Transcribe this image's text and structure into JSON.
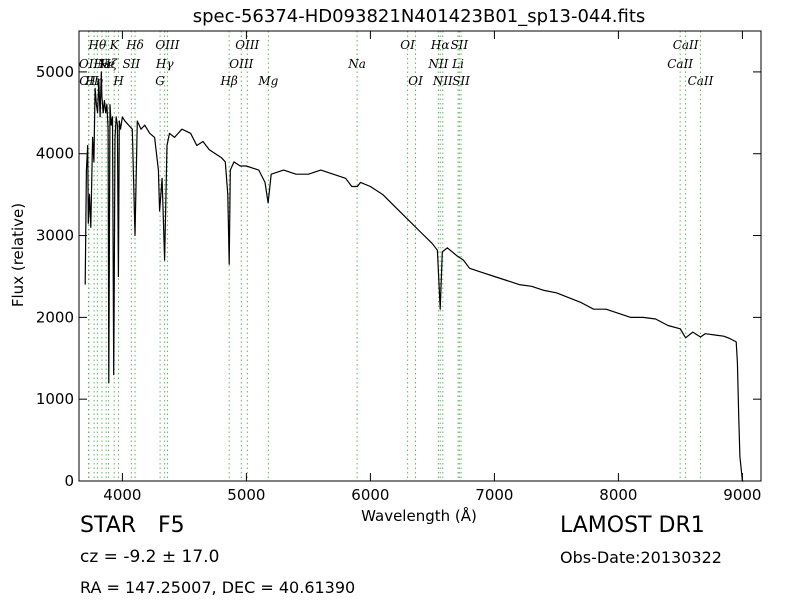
{
  "chart_data": {
    "type": "line",
    "title": "spec-56374-HD093821N401423B01_sp13-044.fits",
    "xlabel": "Wavelength (Å)",
    "ylabel": "Flux (relative)",
    "xlim": [
      3650,
      9150
    ],
    "ylim": [
      0,
      5500
    ],
    "xticks": [
      4000,
      5000,
      6000,
      7000,
      8000,
      9000
    ],
    "yticks": [
      0,
      1000,
      2000,
      3000,
      4000,
      5000
    ],
    "grid": false,
    "line_color": "#000000",
    "marker_color": "#5cb85c",
    "series": [
      {
        "x": [
          3700,
          3710,
          3720,
          3725,
          3735,
          3745,
          3760,
          3770,
          3780,
          3790,
          3800,
          3810,
          3820,
          3830,
          3835,
          3845,
          3855,
          3865,
          3875,
          3885,
          3890,
          3900,
          3910,
          3920,
          3930,
          3934,
          3940,
          3950,
          3960,
          3968,
          3975,
          3985,
          4000,
          4020,
          4050,
          4080,
          4102,
          4120,
          4150,
          4180,
          4220,
          4260,
          4290,
          4300,
          4320,
          4340,
          4360,
          4380,
          4420,
          4480,
          4550,
          4600,
          4650,
          4700,
          4750,
          4800,
          4830,
          4850,
          4861,
          4870,
          4900,
          4950,
          5000,
          5100,
          5150,
          5175,
          5200,
          5300,
          5400,
          5500,
          5600,
          5700,
          5800,
          5850,
          5895,
          5920,
          6000,
          6100,
          6200,
          6300,
          6400,
          6500,
          6540,
          6563,
          6580,
          6620,
          6700,
          6750,
          6800,
          6900,
          7000,
          7100,
          7200,
          7300,
          7400,
          7500,
          7600,
          7700,
          7800,
          7900,
          8000,
          8100,
          8200,
          8300,
          8400,
          8498,
          8542,
          8600,
          8662,
          8700,
          8800,
          8850,
          8900,
          8950,
          8960,
          8970,
          8980,
          9000,
          9010
        ],
        "y": [
          2400,
          3800,
          4100,
          3150,
          3500,
          3100,
          4200,
          3900,
          4800,
          4600,
          4500,
          4900,
          4450,
          5000,
          4700,
          4500,
          4650,
          4500,
          4600,
          4300,
          1200,
          4600,
          4350,
          4450,
          1300,
          2300,
          4200,
          4450,
          4350,
          2500,
          4400,
          4300,
          4450,
          4400,
          4350,
          4300,
          3000,
          4400,
          4300,
          4350,
          4250,
          4200,
          3800,
          3300,
          3700,
          2700,
          4100,
          4250,
          4200,
          4300,
          4250,
          4100,
          4150,
          4050,
          4000,
          3950,
          3900,
          3500,
          2650,
          3800,
          3900,
          3850,
          3850,
          3800,
          3650,
          3400,
          3750,
          3800,
          3750,
          3750,
          3800,
          3750,
          3700,
          3600,
          3600,
          3650,
          3600,
          3500,
          3350,
          3200,
          3050,
          2900,
          2820,
          2100,
          2800,
          2850,
          2750,
          2700,
          2600,
          2550,
          2500,
          2450,
          2400,
          2380,
          2330,
          2300,
          2240,
          2180,
          2100,
          2100,
          2050,
          2000,
          2000,
          1980,
          1900,
          1860,
          1750,
          1820,
          1760,
          1800,
          1780,
          1770,
          1740,
          1700,
          1450,
          800,
          300,
          0,
          0
        ]
      }
    ],
    "line_markers": [
      {
        "wavelength": 3727,
        "label": "OII",
        "row": 2
      },
      {
        "wavelength": 3730,
        "label": "OII",
        "row": 3
      },
      {
        "wavelength": 3772,
        "label": "Hη",
        "row": 3
      },
      {
        "wavelength": 3798,
        "label": "Hθ",
        "row": 1
      },
      {
        "wavelength": 3835,
        "label": "Hε",
        "row": 2
      },
      {
        "wavelength": 3869,
        "label": "Ne",
        "row": 2
      },
      {
        "wavelength": 3889,
        "label": "Hζ",
        "row": 2
      },
      {
        "wavelength": 3934,
        "label": "K",
        "row": 1
      },
      {
        "wavelength": 3969,
        "label": "H",
        "row": 3
      },
      {
        "wavelength": 4072,
        "label": "SII",
        "row": 2
      },
      {
        "wavelength": 4102,
        "label": "Hδ",
        "row": 1
      },
      {
        "wavelength": 4304,
        "label": "G",
        "row": 3
      },
      {
        "wavelength": 4341,
        "label": "Hγ",
        "row": 2
      },
      {
        "wavelength": 4363,
        "label": "OIII",
        "row": 1
      },
      {
        "wavelength": 4861,
        "label": "Hβ",
        "row": 3
      },
      {
        "wavelength": 4959,
        "label": "OIII",
        "row": 2
      },
      {
        "wavelength": 5007,
        "label": "OIII",
        "row": 1
      },
      {
        "wavelength": 5177,
        "label": "Mg",
        "row": 3
      },
      {
        "wavelength": 5893,
        "label": "Na",
        "row": 2
      },
      {
        "wavelength": 6300,
        "label": "OI",
        "row": 1
      },
      {
        "wavelength": 6364,
        "label": "OI",
        "row": 3
      },
      {
        "wavelength": 6548,
        "label": "NII",
        "row": 2
      },
      {
        "wavelength": 6563,
        "label": "Hα",
        "row": 1
      },
      {
        "wavelength": 6584,
        "label": "NII",
        "row": 3
      },
      {
        "wavelength": 6717,
        "label": "SII",
        "row": 1
      },
      {
        "wavelength": 6731,
        "label": "SII",
        "row": 3
      },
      {
        "wavelength": 6707,
        "label": "Li",
        "row": 2
      },
      {
        "wavelength": 8498,
        "label": "CaII",
        "row": 2
      },
      {
        "wavelength": 8542,
        "label": "CaII",
        "row": 1
      },
      {
        "wavelength": 8662,
        "label": "CaII",
        "row": 3
      }
    ]
  },
  "info": {
    "class_label": "STAR",
    "subclass_label": "F5",
    "survey": "LAMOST DR1",
    "cz_text": "cz = -9.2 ± 17.0",
    "obs_date": "Obs-Date:20130322",
    "coords": "RA = 147.25007, DEC = 40.61390"
  }
}
